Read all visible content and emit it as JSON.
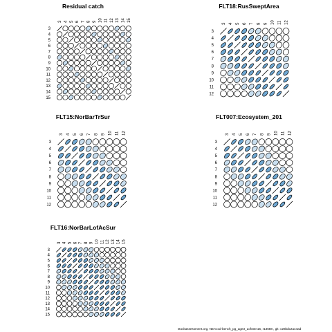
{
  "chart_data": [
    {
      "type": "correlation-matrix",
      "title": "Residual catch",
      "labels": [
        "3",
        "4",
        "5",
        "6",
        "7",
        "8",
        "9",
        "10",
        "11",
        "12",
        "13",
        "14",
        "15"
      ],
      "corr": "residual"
    },
    {
      "type": "correlation-matrix",
      "title": "FLT18:RusSweptArea",
      "labels": [
        "3",
        "4",
        "5",
        "6",
        "7",
        "8",
        "9",
        "10",
        "11",
        "12"
      ],
      "corr": "survey-strong"
    },
    {
      "type": "correlation-matrix",
      "title": "FLT15:NorBarTrSur",
      "labels": [
        "3",
        "4",
        "5",
        "6",
        "7",
        "8",
        "9",
        "10",
        "11",
        "12"
      ],
      "corr": "survey-medium"
    },
    {
      "type": "correlation-matrix",
      "title": "FLT007:Ecosystem_201",
      "labels": [
        "3",
        "4",
        "5",
        "6",
        "7",
        "8",
        "9",
        "10",
        "11",
        "12"
      ],
      "corr": "survey-medium"
    },
    {
      "type": "correlation-matrix",
      "title": "FLT16:NorBarLofAcSur",
      "labels": [
        "3",
        "4",
        "5",
        "6",
        "7",
        "8",
        "9",
        "10",
        "11",
        "12",
        "13",
        "14",
        "15"
      ],
      "corr": "survey-long"
    }
  ],
  "colors": {
    "fill_strong": "#6fa8d3",
    "fill_light": "#c9dff0",
    "stroke": "#000000",
    "none": "#ffffff"
  },
  "footer": "stockassessment.org, NEAcod-bench_pg_age3_Lofoten15, r13688 , git: c28bdc2a44ad"
}
